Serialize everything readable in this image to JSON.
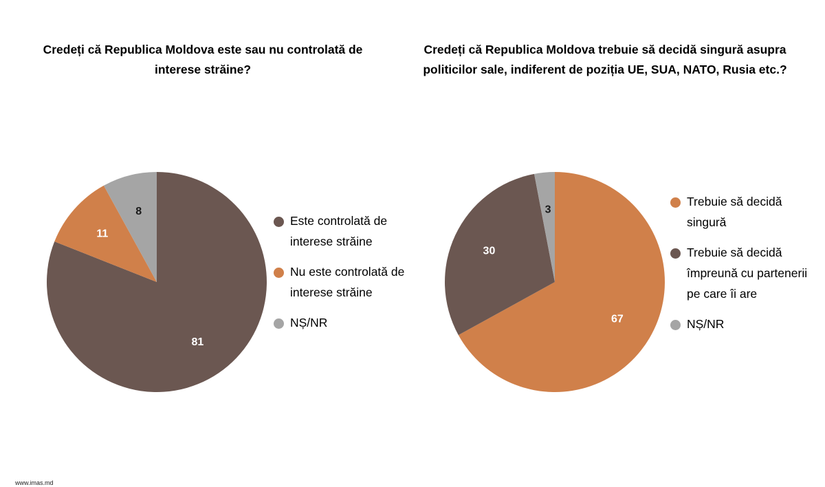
{
  "colors": {
    "brown": "#6b5751",
    "orange": "#d0804a",
    "gray": "#a5a5a5",
    "label_light": "#ffffff",
    "label_dark": "#1a1a1a"
  },
  "footer": {
    "url": "www.imas.md"
  },
  "chart_data": [
    {
      "type": "pie",
      "title": "Credeți că Republica Moldova este sau nu controlată de interese străine?",
      "start": "top",
      "direction": "clockwise",
      "legend_position": "right",
      "slices": [
        {
          "label": "Este controlată de interese străine",
          "value": 81,
          "color": "#6b5751",
          "value_color": "#ffffff"
        },
        {
          "label": "Nu este controlată de interese străine",
          "value": 11,
          "color": "#d0804a",
          "value_color": "#ffffff"
        },
        {
          "label": "NȘ/NR",
          "value": 8,
          "color": "#a5a5a5",
          "value_color": "#1a1a1a"
        }
      ]
    },
    {
      "type": "pie",
      "title": "Credeți că Republica Moldova trebuie să decidă singură asupra politicilor sale, indiferent de poziția UE, SUA, NATO, Rusia etc.?",
      "start": "top",
      "direction": "clockwise",
      "legend_position": "right",
      "slices": [
        {
          "label": "Trebuie să decidă singură",
          "value": 67,
          "color": "#d0804a",
          "value_color": "#ffffff"
        },
        {
          "label": "Trebuie să decidă împreună cu partenerii pe care îi are",
          "value": 30,
          "color": "#6b5751",
          "value_color": "#ffffff"
        },
        {
          "label": "NȘ/NR",
          "value": 3,
          "color": "#a5a5a5",
          "value_color": "#1a1a1a"
        }
      ]
    }
  ]
}
